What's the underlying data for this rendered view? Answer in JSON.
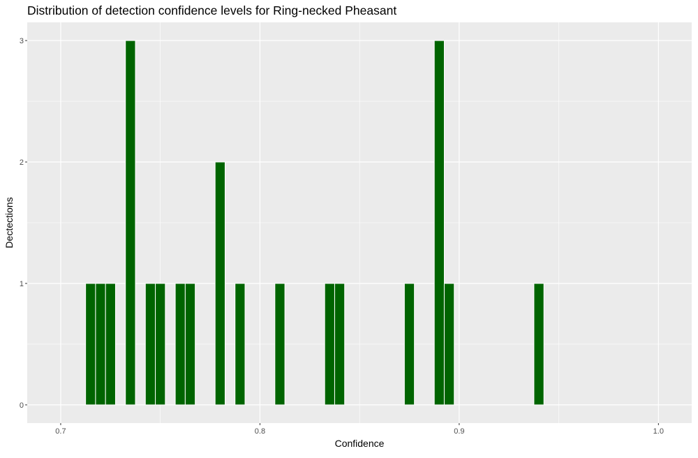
{
  "chart_data": {
    "type": "bar",
    "title": "Distribution of detection confidence levels for Ring-necked Pheasant",
    "xlabel": "Confidence",
    "ylabel": "Dectections",
    "xlim": [
      0.6832,
      1.0167
    ],
    "ylim": [
      -0.15,
      3.15
    ],
    "x_ticks": [
      0.7,
      0.8,
      0.9,
      1.0
    ],
    "x_tick_labels": [
      "0.7",
      "0.8",
      "0.9",
      "1.0"
    ],
    "y_ticks": [
      0,
      1,
      2,
      3
    ],
    "y_tick_labels": [
      "0",
      "1",
      "2",
      "3"
    ],
    "bin_width": 0.005,
    "bar_color": "#006400",
    "panel_color": "#ebebeb",
    "grid": true,
    "x": [
      0.715,
      0.72,
      0.725,
      0.735,
      0.745,
      0.75,
      0.76,
      0.765,
      0.78,
      0.79,
      0.81,
      0.835,
      0.84,
      0.875,
      0.89,
      0.895,
      0.94
    ],
    "values": [
      1,
      1,
      1,
      3,
      1,
      1,
      1,
      1,
      2,
      1,
      1,
      1,
      1,
      1,
      3,
      1,
      1
    ]
  }
}
